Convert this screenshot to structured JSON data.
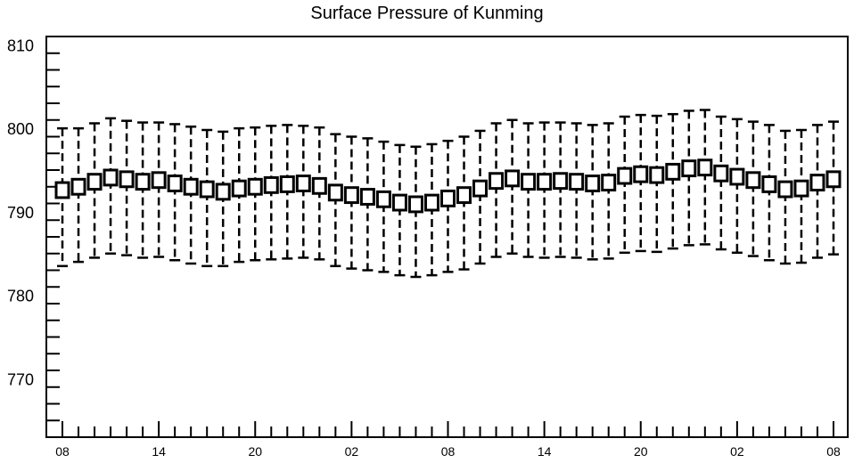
{
  "chart_data": {
    "type": "boxplot",
    "title": "Surface Pressure of Kunming",
    "xlabel": "",
    "ylabel": "",
    "ylim": [
      763,
      811
    ],
    "y_major_ticks": [
      770,
      780,
      790,
      800,
      810
    ],
    "y_minor_step": 2,
    "x_tick_labels": [
      "08",
      "14",
      "20",
      "02",
      "08",
      "14",
      "20",
      "02",
      "08"
    ],
    "x_tick_label_indices": [
      0,
      6,
      12,
      18,
      24,
      30,
      36,
      42,
      48
    ],
    "grid": false,
    "legend": "none",
    "series": [
      {
        "box_center": [
          792.6,
          793.0,
          793.6,
          794.1,
          793.9,
          793.6,
          793.8,
          793.4,
          793.0,
          792.7,
          792.4,
          792.8,
          793.0,
          793.2,
          793.3,
          793.4,
          793.1,
          792.3,
          792.0,
          791.8,
          791.5,
          791.1,
          790.9,
          791.1,
          791.6,
          792.0,
          792.8,
          793.7,
          794.0,
          793.6,
          793.6,
          793.7,
          793.6,
          793.4,
          793.5,
          794.3,
          794.5,
          794.4,
          794.8,
          795.2,
          795.3,
          794.6,
          794.2,
          793.8,
          793.3,
          792.7,
          792.8,
          793.5,
          793.9
        ],
        "box_low": [
          791.7,
          792.1,
          792.7,
          793.2,
          793.0,
          792.7,
          792.9,
          792.5,
          792.1,
          791.8,
          791.5,
          791.9,
          792.1,
          792.3,
          792.4,
          792.5,
          792.2,
          791.4,
          791.1,
          790.9,
          790.6,
          790.2,
          790.0,
          790.2,
          790.7,
          791.1,
          791.9,
          792.8,
          793.1,
          792.7,
          792.7,
          792.8,
          792.7,
          792.5,
          792.6,
          793.4,
          793.6,
          793.5,
          793.9,
          794.3,
          794.4,
          793.7,
          793.3,
          792.9,
          792.4,
          791.8,
          791.9,
          792.6,
          793.0
        ],
        "box_high": [
          793.5,
          793.9,
          794.5,
          795.0,
          794.8,
          794.5,
          794.7,
          794.3,
          793.9,
          793.6,
          793.3,
          793.7,
          793.9,
          794.1,
          794.2,
          794.3,
          794.0,
          793.2,
          792.9,
          792.7,
          792.4,
          792.0,
          791.8,
          792.0,
          792.5,
          792.9,
          793.7,
          794.6,
          794.9,
          794.5,
          794.5,
          794.6,
          794.5,
          794.3,
          794.4,
          795.2,
          795.4,
          795.3,
          795.7,
          796.1,
          796.2,
          795.5,
          795.1,
          794.7,
          794.2,
          793.6,
          793.7,
          794.4,
          794.8
        ],
        "whisker_low": [
          783.5,
          784.0,
          784.5,
          785.0,
          784.8,
          784.5,
          784.6,
          784.2,
          783.8,
          783.5,
          783.5,
          784.0,
          784.2,
          784.3,
          784.4,
          784.5,
          784.3,
          783.5,
          783.2,
          783.0,
          782.8,
          782.4,
          782.2,
          782.4,
          782.8,
          783.1,
          783.8,
          784.6,
          785.0,
          784.6,
          784.5,
          784.6,
          784.5,
          784.3,
          784.4,
          785.1,
          785.3,
          785.2,
          785.6,
          786.0,
          786.1,
          785.5,
          785.1,
          784.7,
          784.2,
          783.8,
          783.9,
          784.5,
          784.9
        ],
        "whisker_high": [
          800.0,
          800.0,
          800.6,
          801.2,
          800.9,
          800.7,
          800.7,
          800.5,
          800.2,
          799.8,
          799.6,
          800.0,
          800.1,
          800.3,
          800.4,
          800.3,
          800.1,
          799.3,
          799.0,
          798.8,
          798.4,
          798.0,
          797.8,
          798.1,
          798.5,
          799.0,
          799.7,
          800.6,
          801.0,
          800.6,
          800.7,
          800.7,
          800.6,
          800.4,
          800.6,
          801.4,
          801.6,
          801.5,
          801.7,
          802.1,
          802.2,
          801.4,
          801.1,
          800.8,
          800.4,
          799.7,
          799.8,
          800.4,
          800.8
        ]
      }
    ]
  }
}
